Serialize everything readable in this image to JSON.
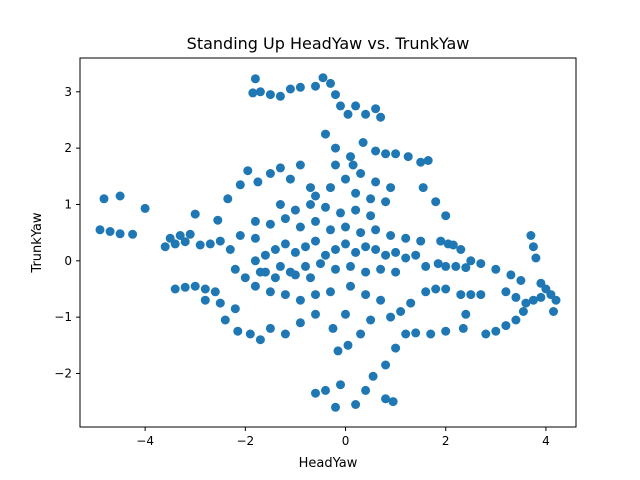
{
  "chart_data": {
    "type": "scatter",
    "title": "Standing Up HeadYaw vs. TrunkYaw",
    "xlabel": "HeadYaw",
    "ylabel": "TrunkYaw",
    "xlim": [
      -5.3,
      4.6
    ],
    "ylim": [
      -2.95,
      3.6
    ],
    "xticks": [
      -4,
      -2,
      0,
      2,
      4
    ],
    "yticks": [
      -2,
      -1,
      0,
      1,
      2,
      3
    ],
    "grid": false,
    "color": "#1f77b4",
    "points": [
      [
        -4.82,
        1.1
      ],
      [
        -4.5,
        1.15
      ],
      [
        -4.0,
        0.93
      ],
      [
        -4.9,
        0.55
      ],
      [
        -4.7,
        0.52
      ],
      [
        -4.5,
        0.48
      ],
      [
        -4.25,
        0.47
      ],
      [
        -3.6,
        0.25
      ],
      [
        -3.4,
        0.3
      ],
      [
        -3.2,
        0.34
      ],
      [
        -3.5,
        0.4
      ],
      [
        -3.3,
        0.45
      ],
      [
        -3.1,
        0.47
      ],
      [
        -3.0,
        0.83
      ],
      [
        -2.55,
        0.72
      ],
      [
        -2.35,
        1.1
      ],
      [
        -2.1,
        1.35
      ],
      [
        -1.95,
        1.6
      ],
      [
        -1.75,
        1.4
      ],
      [
        -1.5,
        1.55
      ],
      [
        -1.3,
        1.65
      ],
      [
        -1.1,
        1.45
      ],
      [
        -0.9,
        1.7
      ],
      [
        -0.7,
        1.3
      ],
      [
        -2.7,
        0.3
      ],
      [
        -2.5,
        0.35
      ],
      [
        -2.9,
        0.28
      ],
      [
        -2.3,
        0.2
      ],
      [
        -2.1,
        0.45
      ],
      [
        -1.8,
        0.7
      ],
      [
        -3.4,
        -0.5
      ],
      [
        -3.2,
        -0.47
      ],
      [
        -3.0,
        -0.45
      ],
      [
        -2.8,
        -0.5
      ],
      [
        -2.6,
        -0.55
      ],
      [
        -2.8,
        -0.7
      ],
      [
        -2.5,
        -0.75
      ],
      [
        -2.2,
        -0.85
      ],
      [
        -2.4,
        -1.05
      ],
      [
        -2.15,
        -1.25
      ],
      [
        -1.9,
        -1.3
      ],
      [
        -1.7,
        -1.4
      ],
      [
        -1.5,
        -1.2
      ],
      [
        -1.2,
        -1.3
      ],
      [
        -0.9,
        -1.1
      ],
      [
        -0.6,
        -0.95
      ],
      [
        -1.85,
        2.98
      ],
      [
        -1.7,
        3.0
      ],
      [
        -1.5,
        2.95
      ],
      [
        -1.3,
        2.92
      ],
      [
        -1.1,
        3.05
      ],
      [
        -0.9,
        3.08
      ],
      [
        -0.6,
        3.1
      ],
      [
        -0.45,
        3.25
      ],
      [
        -0.3,
        3.15
      ],
      [
        -0.2,
        2.95
      ],
      [
        -0.1,
        2.75
      ],
      [
        0.05,
        2.6
      ],
      [
        0.2,
        2.75
      ],
      [
        0.4,
        2.6
      ],
      [
        0.6,
        2.7
      ],
      [
        0.7,
        2.55
      ],
      [
        -1.8,
        3.23
      ],
      [
        -0.4,
        2.25
      ],
      [
        -0.2,
        2.0
      ],
      [
        0.1,
        1.85
      ],
      [
        0.35,
        2.1
      ],
      [
        0.6,
        1.95
      ],
      [
        0.8,
        1.9
      ],
      [
        1.0,
        1.9
      ],
      [
        1.25,
        1.85
      ],
      [
        1.5,
        1.75
      ],
      [
        1.65,
        1.78
      ],
      [
        1.55,
        1.3
      ],
      [
        1.8,
        1.05
      ],
      [
        2.0,
        0.8
      ],
      [
        1.9,
        0.35
      ],
      [
        2.05,
        0.3
      ],
      [
        2.15,
        0.28
      ],
      [
        2.3,
        0.2
      ],
      [
        2.5,
        0.0
      ],
      [
        2.7,
        -0.05
      ],
      [
        1.6,
        -0.1
      ],
      [
        1.85,
        -0.05
      ],
      [
        2.0,
        -0.1
      ],
      [
        2.2,
        -0.1
      ],
      [
        2.4,
        -0.12
      ],
      [
        1.6,
        -0.55
      ],
      [
        1.8,
        -0.5
      ],
      [
        2.0,
        -0.5
      ],
      [
        2.3,
        -0.6
      ],
      [
        2.5,
        -0.6
      ],
      [
        2.7,
        -0.6
      ],
      [
        3.0,
        -0.15
      ],
      [
        3.3,
        -0.25
      ],
      [
        3.5,
        -0.35
      ],
      [
        3.2,
        -0.55
      ],
      [
        3.4,
        -0.65
      ],
      [
        3.7,
        0.45
      ],
      [
        3.75,
        0.25
      ],
      [
        3.8,
        0.05
      ],
      [
        3.9,
        -0.4
      ],
      [
        4.0,
        -0.5
      ],
      [
        4.1,
        -0.6
      ],
      [
        4.2,
        -0.7
      ],
      [
        4.15,
        -0.9
      ],
      [
        3.9,
        -0.65
      ],
      [
        3.75,
        -0.7
      ],
      [
        2.8,
        -1.3
      ],
      [
        3.0,
        -1.25
      ],
      [
        3.2,
        -1.15
      ],
      [
        3.4,
        -1.05
      ],
      [
        3.55,
        -0.9
      ],
      [
        3.6,
        -0.75
      ],
      [
        2.4,
        -0.95
      ],
      [
        2.35,
        -1.2
      ],
      [
        2.0,
        -1.25
      ],
      [
        1.7,
        -1.3
      ],
      [
        1.4,
        -1.28
      ],
      [
        1.2,
        -1.3
      ],
      [
        1.0,
        -1.55
      ],
      [
        0.8,
        -1.85
      ],
      [
        0.55,
        -2.05
      ],
      [
        0.4,
        -2.3
      ],
      [
        0.2,
        -2.55
      ],
      [
        -0.1,
        -2.2
      ],
      [
        -0.2,
        -2.6
      ],
      [
        -0.4,
        -2.3
      ],
      [
        -0.6,
        -2.35
      ],
      [
        0.8,
        -2.45
      ],
      [
        0.95,
        -2.5
      ],
      [
        -0.15,
        -1.6
      ],
      [
        0.05,
        -1.5
      ],
      [
        0.3,
        -1.3
      ],
      [
        -0.25,
        -1.2
      ],
      [
        0.0,
        -0.95
      ],
      [
        0.5,
        -1.05
      ],
      [
        0.9,
        -1.0
      ],
      [
        1.1,
        -0.9
      ],
      [
        1.3,
        -0.75
      ],
      [
        0.7,
        -0.7
      ],
      [
        0.4,
        -0.6
      ],
      [
        0.1,
        -0.45
      ],
      [
        -0.3,
        -0.55
      ],
      [
        -0.6,
        -0.6
      ],
      [
        -0.9,
        -0.7
      ],
      [
        -1.2,
        -0.6
      ],
      [
        -1.5,
        -0.55
      ],
      [
        -1.8,
        -0.45
      ],
      [
        -2.0,
        -0.3
      ],
      [
        -2.2,
        -0.15
      ],
      [
        -1.6,
        -0.2
      ],
      [
        -1.3,
        -0.1
      ],
      [
        -1.0,
        -0.25
      ],
      [
        -0.7,
        -0.3
      ],
      [
        -1.8,
        0.0
      ],
      [
        -1.6,
        0.1
      ],
      [
        -1.4,
        0.2
      ],
      [
        -1.2,
        0.3
      ],
      [
        -1.0,
        0.15
      ],
      [
        -0.8,
        0.25
      ],
      [
        -0.6,
        0.35
      ],
      [
        -0.4,
        0.1
      ],
      [
        -0.2,
        0.2
      ],
      [
        0.0,
        0.3
      ],
      [
        0.2,
        0.15
      ],
      [
        0.4,
        0.25
      ],
      [
        0.6,
        0.2
      ],
      [
        0.8,
        0.1
      ],
      [
        1.0,
        0.15
      ],
      [
        1.2,
        0.05
      ],
      [
        1.4,
        0.1
      ],
      [
        1.0,
        -0.2
      ],
      [
        0.7,
        -0.15
      ],
      [
        0.4,
        -0.2
      ],
      [
        0.1,
        -0.1
      ],
      [
        -0.2,
        -0.15
      ],
      [
        -0.5,
        -0.05
      ],
      [
        -0.8,
        -0.1
      ],
      [
        -1.1,
        -0.2
      ],
      [
        -1.4,
        -0.3
      ],
      [
        -1.7,
        -0.2
      ],
      [
        0.3,
        0.5
      ],
      [
        0.0,
        0.6
      ],
      [
        -0.3,
        0.55
      ],
      [
        -0.6,
        0.7
      ],
      [
        -0.9,
        0.6
      ],
      [
        -1.2,
        0.75
      ],
      [
        -1.5,
        0.65
      ],
      [
        -1.8,
        0.4
      ],
      [
        0.6,
        0.55
      ],
      [
        0.9,
        0.45
      ],
      [
        1.2,
        0.4
      ],
      [
        1.5,
        0.35
      ],
      [
        -0.1,
        0.85
      ],
      [
        0.2,
        0.9
      ],
      [
        0.5,
        0.8
      ],
      [
        -0.4,
        0.95
      ],
      [
        -0.7,
        1.0
      ],
      [
        -1.0,
        0.9
      ],
      [
        -1.3,
        1.0
      ],
      [
        0.2,
        1.2
      ],
      [
        0.5,
        1.1
      ],
      [
        0.8,
        1.05
      ],
      [
        -0.3,
        1.3
      ],
      [
        -0.6,
        1.15
      ],
      [
        0.0,
        1.45
      ],
      [
        0.3,
        1.55
      ],
      [
        0.6,
        1.4
      ],
      [
        0.9,
        1.3
      ],
      [
        -0.2,
        1.7
      ],
      [
        0.15,
        1.7
      ]
    ]
  }
}
